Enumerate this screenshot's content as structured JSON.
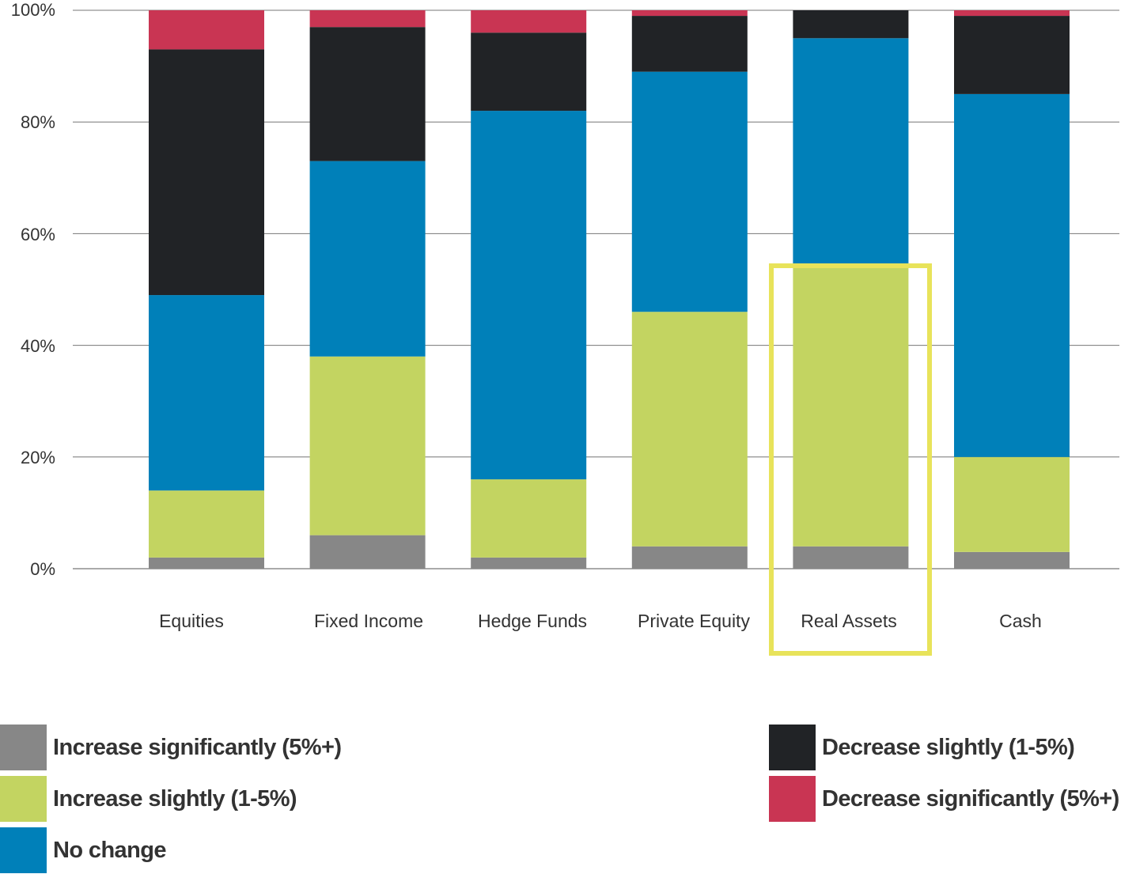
{
  "chart_data": {
    "type": "bar",
    "stacked": true,
    "percent": true,
    "categories": [
      "Equities",
      "Fixed Income",
      "Hedge Funds",
      "Private Equity",
      "Real Assets",
      "Cash"
    ],
    "series": [
      {
        "name": "Increase significantly (5%+)",
        "color": "#878787",
        "values": [
          2,
          6,
          2,
          4,
          4,
          3
        ]
      },
      {
        "name": "Increase slightly (1-5%)",
        "color": "#c3d461",
        "values": [
          12,
          32,
          14,
          42,
          50,
          17
        ]
      },
      {
        "name": "No change",
        "color": "#0080b9",
        "values": [
          35,
          35,
          66,
          43,
          41,
          65
        ]
      },
      {
        "name": "Decrease slightly (1-5%)",
        "color": "#212326",
        "values": [
          44,
          24,
          14,
          10,
          5,
          14
        ]
      },
      {
        "name": "Decrease significantly (5%+)",
        "color": "#c93553",
        "values": [
          7,
          3,
          4,
          1,
          0,
          1
        ]
      }
    ],
    "yticks": [
      "0%",
      "20%",
      "40%",
      "60%",
      "80%",
      "100%"
    ],
    "ylim": [
      0,
      100
    ],
    "grid": true,
    "legend_placement": "bottom",
    "highlighted_category": "Real Assets",
    "highlight_color": "#e8e35a"
  }
}
